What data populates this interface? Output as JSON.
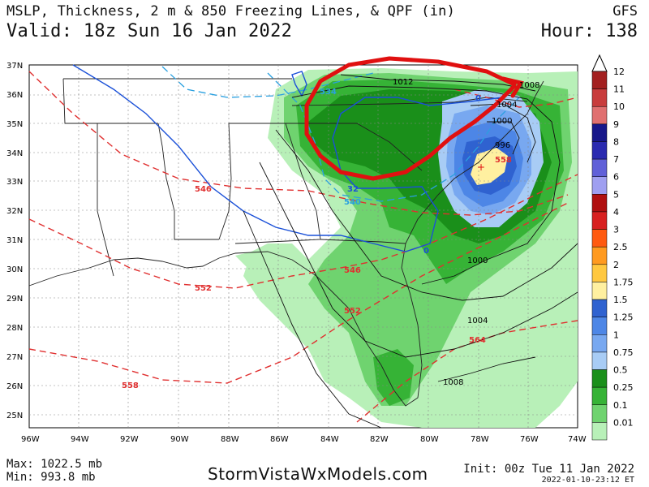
{
  "header": {
    "title": "MSLP, Thickness, 2 m & 850 Freezing Lines, & QPF (in)",
    "model": "GFS",
    "valid": "Valid: 18z Sun 16 Jan 2022",
    "hour": "Hour: 138"
  },
  "footer": {
    "max": "Max: 1022.5 mb",
    "min": "Min: 993.8 mb",
    "site": "StormVistaWxModels.com",
    "init": "Init: 00z Tue 11 Jan 2022",
    "stamp": "2022-01-10-23:12 ET"
  },
  "map": {
    "lat_labels": [
      "37N",
      "36N",
      "35N",
      "34N",
      "33N",
      "32N",
      "31N",
      "30N",
      "29N",
      "28N",
      "27N",
      "26N",
      "25N"
    ],
    "lon_labels": [
      "96W",
      "94W",
      "92W",
      "90W",
      "88W",
      "86W",
      "84W",
      "82W",
      "80W",
      "78W",
      "76W",
      "74W"
    ],
    "isobar_labels": [
      "1012",
      "1008",
      "1004",
      "1000",
      "996",
      "1000",
      "1004",
      "1008"
    ],
    "thickness_labels": [
      "546",
      "552",
      "558",
      "546",
      "552",
      "558",
      "564"
    ],
    "thickness_blue_labels": [
      "534",
      "540"
    ],
    "freezing_labels": [
      "32",
      "0",
      "0"
    ]
  },
  "colorbar": {
    "labels": [
      "12",
      "11",
      "10",
      "9",
      "8",
      "7",
      "6",
      "5",
      "4",
      "3",
      "2.5",
      "2",
      "1.75",
      "1.5",
      "1.25",
      "1",
      "0.75",
      "0.5",
      "0.25",
      "0.1",
      "0.01"
    ],
    "colors": [
      "#a32020",
      "#c83c3c",
      "#e07070",
      "#17178a",
      "#2a2ab0",
      "#6060d8",
      "#9f9ff0",
      "#b01010",
      "#d82020",
      "#ff5a10",
      "#ff9a20",
      "#ffc840",
      "#fff0a0",
      "#2f62d0",
      "#4d86e6",
      "#78a8f0",
      "#a8ccf5",
      "#1a8f1a",
      "#36b336",
      "#6fd36f",
      "#b8f0b8"
    ]
  },
  "colors": {
    "annotation": "#e01010",
    "thickness": "#e03030",
    "freezing": "#1a50d8",
    "isobar": "#111111"
  }
}
